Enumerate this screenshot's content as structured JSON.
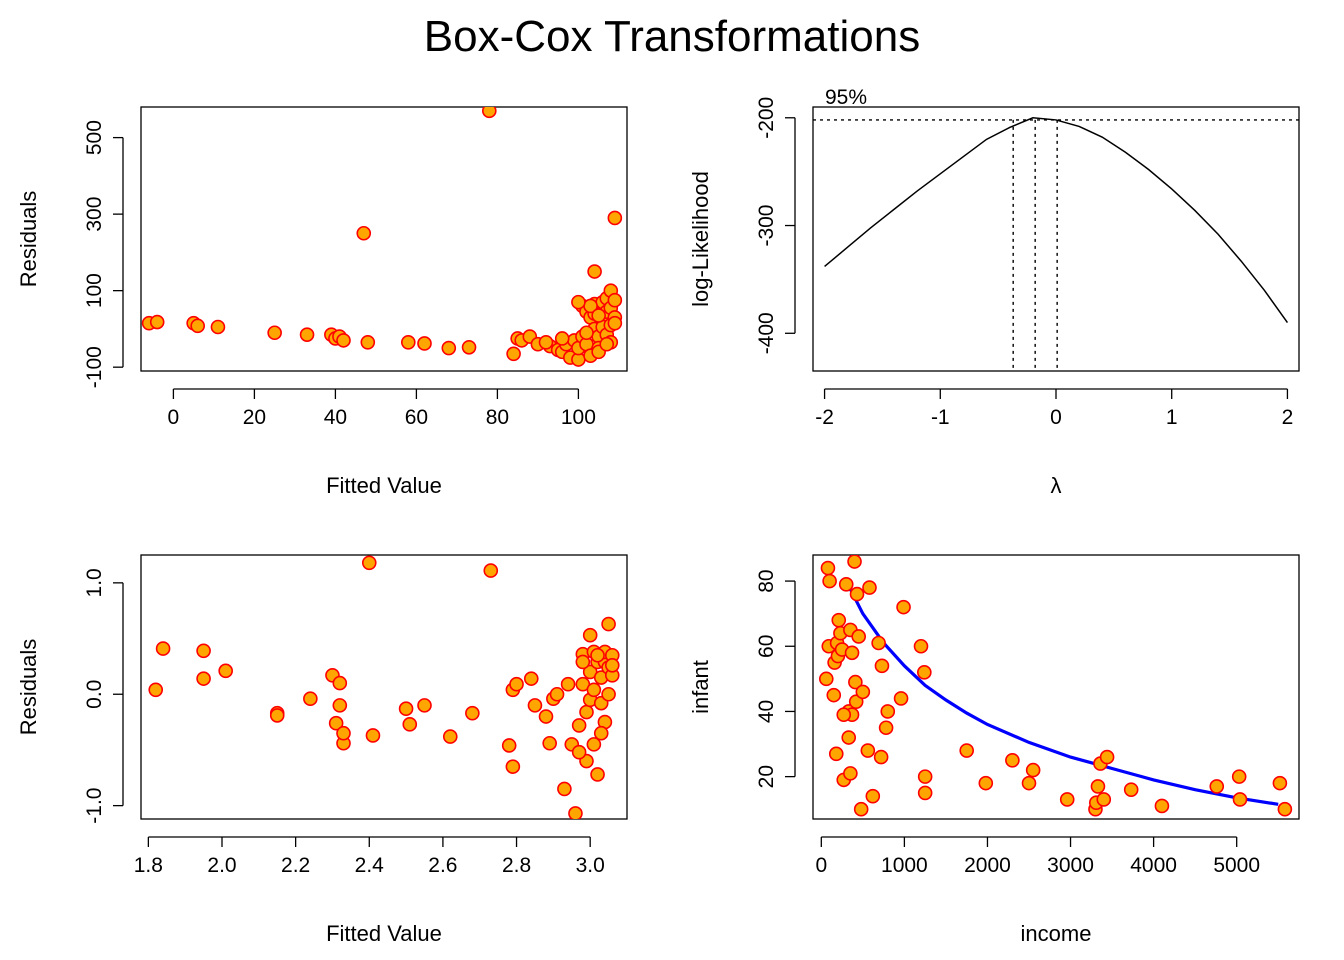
{
  "title": "Box-Cox Transformations",
  "colors": {
    "point_fill": "#FFA500",
    "point_stroke": "#FF0000",
    "curve_fit": "#0000FF",
    "line": "#000000"
  },
  "chart_data": [
    {
      "type": "scatter",
      "xlabel": "Fitted Value",
      "ylabel": "Residuals",
      "xlim": [
        -8,
        112
      ],
      "ylim": [
        -110,
        580
      ],
      "xticks": [
        0,
        20,
        40,
        60,
        80,
        100
      ],
      "yticks": [
        -100,
        100,
        300,
        500
      ],
      "points": [
        [
          -6,
          15
        ],
        [
          -4,
          18
        ],
        [
          5,
          15
        ],
        [
          6,
          8
        ],
        [
          11,
          5
        ],
        [
          25,
          -10
        ],
        [
          33,
          -15
        ],
        [
          39,
          -15
        ],
        [
          40,
          -25
        ],
        [
          41,
          -20
        ],
        [
          42,
          -30
        ],
        [
          47,
          250
        ],
        [
          48,
          -35
        ],
        [
          58,
          -35
        ],
        [
          62,
          -38
        ],
        [
          68,
          -50
        ],
        [
          73,
          -48
        ],
        [
          78,
          570
        ],
        [
          84,
          -65
        ],
        [
          85,
          -25
        ],
        [
          86,
          -30
        ],
        [
          88,
          -20
        ],
        [
          90,
          -40
        ],
        [
          93,
          -45
        ],
        [
          95,
          -55
        ],
        [
          96,
          -60
        ],
        [
          97,
          -40
        ],
        [
          98,
          -75
        ],
        [
          99,
          -30
        ],
        [
          100,
          -80
        ],
        [
          100,
          -50
        ],
        [
          101,
          -20
        ],
        [
          101,
          60
        ],
        [
          102,
          45
        ],
        [
          102,
          -40
        ],
        [
          103,
          30
        ],
        [
          103,
          -70
        ],
        [
          104,
          150
        ],
        [
          104,
          65
        ],
        [
          104,
          40
        ],
        [
          104,
          0
        ],
        [
          105,
          -20
        ],
        [
          105,
          -50
        ],
        [
          105,
          -60
        ],
        [
          106,
          20
        ],
        [
          106,
          70
        ],
        [
          106,
          5
        ],
        [
          107,
          45
        ],
        [
          107,
          -15
        ],
        [
          107,
          80
        ],
        [
          108,
          100
        ],
        [
          108,
          55
        ],
        [
          108,
          -35
        ],
        [
          108,
          10
        ],
        [
          109,
          290
        ],
        [
          109,
          75
        ],
        [
          109,
          30
        ],
        [
          109,
          15
        ],
        [
          103,
          60
        ],
        [
          105,
          35
        ],
        [
          100,
          70
        ],
        [
          102,
          -10
        ],
        [
          96,
          -25
        ],
        [
          92,
          -35
        ],
        [
          107,
          -40
        ]
      ]
    },
    {
      "type": "line",
      "xlabel": "λ",
      "ylabel": "log-Likelihood",
      "xlim": [
        -2.1,
        2.1
      ],
      "ylim": [
        -435,
        -190
      ],
      "xticks": [
        -2,
        -1,
        0,
        1,
        2
      ],
      "yticks": [
        -200,
        -300,
        -400
      ],
      "lambda_hat": -0.18,
      "ci": [
        -0.37,
        0.01
      ],
      "threshold": -202,
      "annotation": "95%",
      "curve": [
        [
          -2.0,
          -338
        ],
        [
          -1.8,
          -320
        ],
        [
          -1.6,
          -302
        ],
        [
          -1.4,
          -285
        ],
        [
          -1.2,
          -268
        ],
        [
          -1.0,
          -252
        ],
        [
          -0.8,
          -236
        ],
        [
          -0.6,
          -220
        ],
        [
          -0.4,
          -209
        ],
        [
          -0.2,
          -200
        ],
        [
          0.0,
          -202
        ],
        [
          0.2,
          -208
        ],
        [
          0.4,
          -218
        ],
        [
          0.6,
          -232
        ],
        [
          0.8,
          -248
        ],
        [
          1.0,
          -266
        ],
        [
          1.2,
          -286
        ],
        [
          1.4,
          -308
        ],
        [
          1.6,
          -333
        ],
        [
          1.8,
          -360
        ],
        [
          2.0,
          -390
        ]
      ]
    },
    {
      "type": "scatter",
      "xlabel": "Fitted Value",
      "ylabel": "Residuals",
      "xlim": [
        1.78,
        3.1
      ],
      "ylim": [
        -1.12,
        1.25
      ],
      "xticks": [
        1.8,
        2.0,
        2.2,
        2.4,
        2.6,
        2.8,
        3.0
      ],
      "xtick_labels": [
        "1.8",
        "2.0",
        "2.2",
        "2.4",
        "2.6",
        "2.8",
        "3.0"
      ],
      "yticks": [
        -1.0,
        0.0,
        1.0
      ],
      "ytick_labels": [
        "-1.0",
        "0.0",
        "1.0"
      ],
      "points": [
        [
          1.82,
          0.04
        ],
        [
          1.84,
          0.41
        ],
        [
          1.95,
          0.39
        ],
        [
          1.95,
          0.14
        ],
        [
          2.01,
          0.21
        ],
        [
          2.15,
          -0.17
        ],
        [
          2.15,
          -0.19
        ],
        [
          2.24,
          -0.04
        ],
        [
          2.3,
          0.17
        ],
        [
          2.31,
          -0.26
        ],
        [
          2.32,
          0.1
        ],
        [
          2.32,
          -0.1
        ],
        [
          2.33,
          -0.44
        ],
        [
          2.33,
          -0.35
        ],
        [
          2.4,
          1.18
        ],
        [
          2.41,
          -0.37
        ],
        [
          2.5,
          -0.13
        ],
        [
          2.51,
          -0.27
        ],
        [
          2.55,
          -0.1
        ],
        [
          2.62,
          -0.38
        ],
        [
          2.68,
          -0.17
        ],
        [
          2.73,
          1.11
        ],
        [
          2.78,
          -0.46
        ],
        [
          2.79,
          -0.65
        ],
        [
          2.79,
          0.04
        ],
        [
          2.8,
          0.09
        ],
        [
          2.84,
          0.14
        ],
        [
          2.85,
          -0.1
        ],
        [
          2.88,
          -0.2
        ],
        [
          2.89,
          -0.44
        ],
        [
          2.9,
          -0.04
        ],
        [
          2.91,
          0.0
        ],
        [
          2.93,
          -0.85
        ],
        [
          2.94,
          0.09
        ],
        [
          2.95,
          -0.45
        ],
        [
          2.96,
          -1.07
        ],
        [
          2.97,
          -0.28
        ],
        [
          2.98,
          0.36
        ],
        [
          2.98,
          0.09
        ],
        [
          2.99,
          -0.16
        ],
        [
          2.99,
          -0.6
        ],
        [
          3.0,
          0.53
        ],
        [
          3.0,
          -0.05
        ],
        [
          3.0,
          0.2
        ],
        [
          3.01,
          -0.45
        ],
        [
          3.01,
          0.38
        ],
        [
          3.02,
          -0.72
        ],
        [
          3.02,
          0.29
        ],
        [
          3.03,
          -0.08
        ],
        [
          3.03,
          0.15
        ],
        [
          3.04,
          0.29
        ],
        [
          3.04,
          -0.25
        ],
        [
          3.04,
          0.38
        ],
        [
          3.05,
          0.0
        ],
        [
          3.05,
          0.63
        ],
        [
          3.05,
          0.24
        ],
        [
          3.06,
          0.17
        ],
        [
          3.06,
          0.35
        ],
        [
          3.01,
          0.04
        ],
        [
          3.03,
          -0.35
        ],
        [
          2.97,
          -0.52
        ],
        [
          2.98,
          0.29
        ],
        [
          3.02,
          0.35
        ],
        [
          3.06,
          0.26
        ]
      ]
    },
    {
      "type": "scatter",
      "xlabel": "income",
      "ylabel": "infant",
      "xlim": [
        -100,
        5750
      ],
      "ylim": [
        7,
        88
      ],
      "xticks": [
        0,
        1000,
        2000,
        3000,
        4000,
        5000
      ],
      "yticks": [
        20,
        40,
        60,
        80
      ],
      "fit_curve": [
        [
          300,
          80
        ],
        [
          500,
          70
        ],
        [
          750,
          61
        ],
        [
          1000,
          54
        ],
        [
          1250,
          48
        ],
        [
          1500,
          43.5
        ],
        [
          1750,
          39.5
        ],
        [
          2000,
          36
        ],
        [
          2500,
          30.5
        ],
        [
          3000,
          26
        ],
        [
          3500,
          22.5
        ],
        [
          4000,
          19
        ],
        [
          4500,
          16
        ],
        [
          5000,
          13.5
        ],
        [
          5500,
          11.5
        ]
      ],
      "points": [
        [
          80,
          84
        ],
        [
          100,
          80
        ],
        [
          90,
          60
        ],
        [
          60,
          50
        ],
        [
          160,
          55
        ],
        [
          200,
          57
        ],
        [
          190,
          61
        ],
        [
          250,
          59
        ],
        [
          210,
          68
        ],
        [
          230,
          64
        ],
        [
          300,
          79
        ],
        [
          350,
          65
        ],
        [
          370,
          58
        ],
        [
          330,
          40
        ],
        [
          370,
          39
        ],
        [
          270,
          39
        ],
        [
          180,
          27
        ],
        [
          270,
          19
        ],
        [
          350,
          21
        ],
        [
          330,
          32
        ],
        [
          150,
          45
        ],
        [
          400,
          86
        ],
        [
          410,
          49
        ],
        [
          430,
          76
        ],
        [
          450,
          63
        ],
        [
          420,
          43
        ],
        [
          500,
          46
        ],
        [
          560,
          28
        ],
        [
          580,
          78
        ],
        [
          620,
          14
        ],
        [
          690,
          61
        ],
        [
          730,
          54
        ],
        [
          720,
          26
        ],
        [
          780,
          35
        ],
        [
          800,
          40
        ],
        [
          960,
          44
        ],
        [
          990,
          72
        ],
        [
          1200,
          60
        ],
        [
          1240,
          52
        ],
        [
          1250,
          20
        ],
        [
          1250,
          15
        ],
        [
          1750,
          28
        ],
        [
          1980,
          18
        ],
        [
          2300,
          25
        ],
        [
          2500,
          18
        ],
        [
          2550,
          22
        ],
        [
          2960,
          13
        ],
        [
          3300,
          10
        ],
        [
          3310,
          12
        ],
        [
          3330,
          17
        ],
        [
          3360,
          24
        ],
        [
          3400,
          13
        ],
        [
          3440,
          26
        ],
        [
          3730,
          16
        ],
        [
          4100,
          11
        ],
        [
          4760,
          17
        ],
        [
          5030,
          20
        ],
        [
          5040,
          13
        ],
        [
          5520,
          18
        ],
        [
          5580,
          10
        ],
        [
          480,
          10
        ]
      ]
    }
  ]
}
